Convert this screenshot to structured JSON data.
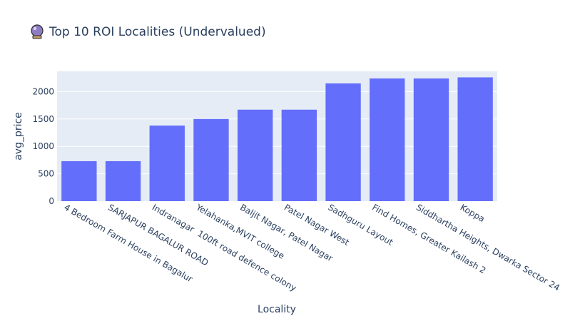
{
  "title_icon": "crystal-ball-icon",
  "chart_data": {
    "type": "bar",
    "title": "Top 10 ROI Localities (Undervalued)",
    "xlabel": "Locality",
    "ylabel": "avg_price",
    "categories": [
      "4 Bedroom Farm House in Bagalur",
      "SARJAPUR BAGALUR ROAD",
      "Indranagar  100ft road defence colony",
      "Yelahanka,MVIT college",
      "Baljit Nagar, Patel Nagar",
      "Patel Nagar West",
      "Sadhguru Layout",
      "Find Homes, Greater Kailash 2",
      "Siddhartha Heights, Dwarka Sector 24",
      "Koppa"
    ],
    "values": [
      730,
      730,
      1380,
      1500,
      1670,
      1670,
      2150,
      2240,
      2240,
      2260
    ],
    "ylim": [
      0,
      2370
    ],
    "yticks": [
      0,
      500,
      1000,
      1500,
      2000
    ],
    "grid": true,
    "colors": {
      "bar": "#636efa",
      "plot_bg": "#e5ecf6",
      "grid": "#ffffff",
      "text": "#2a3f5f"
    }
  }
}
